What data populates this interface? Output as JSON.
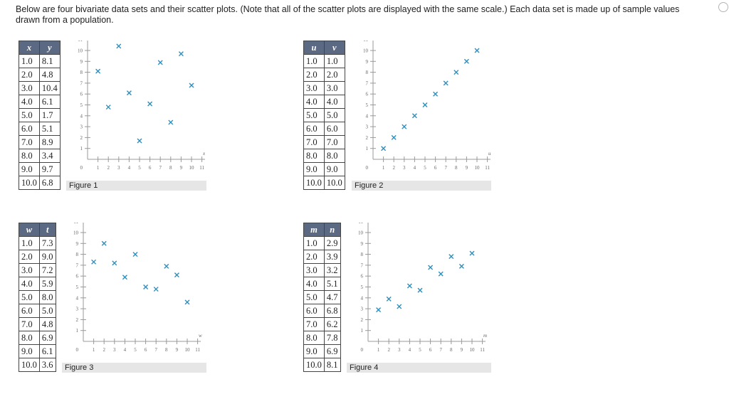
{
  "intro": "Below are four bivariate data sets and their scatter plots. (Note that all of the scatter plots are displayed with the same scale.) Each data set is made up of sample values drawn from a population.",
  "panels": [
    {
      "headers": [
        "x",
        "y"
      ],
      "rows": [
        [
          "1.0",
          "8.1"
        ],
        [
          "2.0",
          "4.8"
        ],
        [
          "3.0",
          "10.4"
        ],
        [
          "4.0",
          "6.1"
        ],
        [
          "5.0",
          "1.7"
        ],
        [
          "6.0",
          "5.1"
        ],
        [
          "7.0",
          "8.9"
        ],
        [
          "8.0",
          "3.4"
        ],
        [
          "9.0",
          "9.7"
        ],
        [
          "10.0",
          "6.8"
        ]
      ],
      "caption": "Figure 1",
      "plot": {
        "x_label": "x",
        "y_label": "y",
        "x_ticks": [
          "1",
          "2",
          "3",
          "4",
          "5",
          "6",
          "7",
          "8",
          "9",
          "10",
          "11"
        ],
        "y_ticks": [
          "1",
          "2",
          "3",
          "4",
          "5",
          "6",
          "7",
          "8",
          "9",
          "10",
          "11"
        ],
        "origin_label": "0",
        "points": [
          [
            1,
            8.1
          ],
          [
            2,
            4.8
          ],
          [
            3,
            10.4
          ],
          [
            4,
            6.1
          ],
          [
            5,
            1.7
          ],
          [
            6,
            5.1
          ],
          [
            7,
            8.9
          ],
          [
            8,
            3.4
          ],
          [
            9,
            9.7
          ],
          [
            10,
            6.8
          ]
        ]
      }
    },
    {
      "headers": [
        "u",
        "v"
      ],
      "rows": [
        [
          "1.0",
          "1.0"
        ],
        [
          "2.0",
          "2.0"
        ],
        [
          "3.0",
          "3.0"
        ],
        [
          "4.0",
          "4.0"
        ],
        [
          "5.0",
          "5.0"
        ],
        [
          "6.0",
          "6.0"
        ],
        [
          "7.0",
          "7.0"
        ],
        [
          "8.0",
          "8.0"
        ],
        [
          "9.0",
          "9.0"
        ],
        [
          "10.0",
          "10.0"
        ]
      ],
      "caption": "Figure 2",
      "plot": {
        "x_label": "u",
        "y_label": "v",
        "x_ticks": [
          "1",
          "2",
          "3",
          "4",
          "5",
          "6",
          "7",
          "8",
          "9",
          "10",
          "11"
        ],
        "y_ticks": [
          "1",
          "2",
          "3",
          "4",
          "5",
          "6",
          "7",
          "8",
          "9",
          "10",
          "11"
        ],
        "origin_label": "0",
        "points": [
          [
            1,
            1
          ],
          [
            2,
            2
          ],
          [
            3,
            3
          ],
          [
            4,
            4
          ],
          [
            5,
            5
          ],
          [
            6,
            6
          ],
          [
            7,
            7
          ],
          [
            8,
            8
          ],
          [
            9,
            9
          ],
          [
            10,
            10
          ]
        ]
      }
    },
    {
      "headers": [
        "w",
        "t"
      ],
      "rows": [
        [
          "1.0",
          "7.3"
        ],
        [
          "2.0",
          "9.0"
        ],
        [
          "3.0",
          "7.2"
        ],
        [
          "4.0",
          "5.9"
        ],
        [
          "5.0",
          "8.0"
        ],
        [
          "6.0",
          "5.0"
        ],
        [
          "7.0",
          "4.8"
        ],
        [
          "8.0",
          "6.9"
        ],
        [
          "9.0",
          "6.1"
        ],
        [
          "10.0",
          "3.6"
        ]
      ],
      "caption": "Figure 3",
      "plot": {
        "x_label": "w",
        "y_label": "t",
        "x_ticks": [
          "1",
          "2",
          "3",
          "4",
          "5",
          "6",
          "7",
          "8",
          "9",
          "10",
          "11"
        ],
        "y_ticks": [
          "1",
          "2",
          "3",
          "4",
          "5",
          "6",
          "7",
          "8",
          "9",
          "10",
          "11"
        ],
        "origin_label": "0",
        "points": [
          [
            1,
            7.3
          ],
          [
            2,
            9.0
          ],
          [
            3,
            7.2
          ],
          [
            4,
            5.9
          ],
          [
            5,
            8.0
          ],
          [
            6,
            5.0
          ],
          [
            7,
            4.8
          ],
          [
            8,
            6.9
          ],
          [
            9,
            6.1
          ],
          [
            10,
            3.6
          ]
        ]
      }
    },
    {
      "headers": [
        "m",
        "n"
      ],
      "rows": [
        [
          "1.0",
          "2.9"
        ],
        [
          "2.0",
          "3.9"
        ],
        [
          "3.0",
          "3.2"
        ],
        [
          "4.0",
          "5.1"
        ],
        [
          "5.0",
          "4.7"
        ],
        [
          "6.0",
          "6.8"
        ],
        [
          "7.0",
          "6.2"
        ],
        [
          "8.0",
          "7.8"
        ],
        [
          "9.0",
          "6.9"
        ],
        [
          "10.0",
          "8.1"
        ]
      ],
      "caption": "Figure 4",
      "plot": {
        "x_label": "m",
        "y_label": "n",
        "x_ticks": [
          "1",
          "2",
          "3",
          "4",
          "5",
          "6",
          "7",
          "8",
          "9",
          "10",
          "11"
        ],
        "y_ticks": [
          "1",
          "2",
          "3",
          "4",
          "5",
          "6",
          "7",
          "8",
          "9",
          "10",
          "11"
        ],
        "origin_label": "0",
        "points": [
          [
            1,
            2.9
          ],
          [
            2,
            3.9
          ],
          [
            3,
            3.2
          ],
          [
            4,
            5.1
          ],
          [
            5,
            4.7
          ],
          [
            6,
            6.8
          ],
          [
            7,
            6.2
          ],
          [
            8,
            7.8
          ],
          [
            9,
            6.9
          ],
          [
            10,
            8.1
          ]
        ]
      }
    }
  ],
  "colors": {
    "header_bg": "#5b6a82",
    "marker": "#2e8fbf",
    "caption_bg": "#e6e6e6",
    "axis": "#999999"
  },
  "icons": {
    "marker": "x-marker-icon"
  }
}
